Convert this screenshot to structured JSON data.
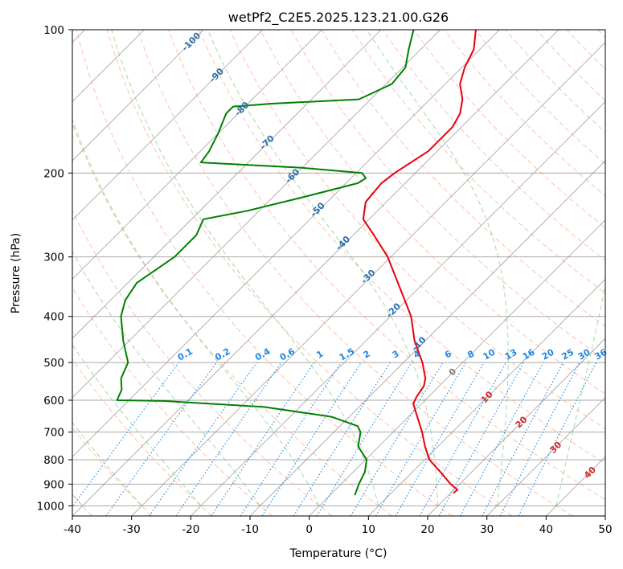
{
  "colors": {
    "temperature": "#e8000b",
    "dewpoint": "#008000",
    "dry_adiabat": "#ff8c69",
    "moist_adiabat": "#7fc97f",
    "mixing_ratio": "#1e88e5",
    "mixing_ratio_label": "#1e88e5",
    "isotherm": "#808080",
    "isobar": "#a9a9a9",
    "wet_bulb_label": "#2a6fb0",
    "theta_e_label": "#d62728",
    "zero_label": "#808080",
    "extra_curve": "#d2b48c"
  },
  "chart_data": {
    "type": "line",
    "title": "wetPf2_C2E5.2025.123.21.00.G26",
    "xlabel": "Temperature (°C)",
    "ylabel": "Pressure (hPa)",
    "xlim": [
      -40,
      50
    ],
    "ylim": [
      1050,
      100
    ],
    "y_scale": "log",
    "skew": "isotherms tilted 45° to the right",
    "grid": true,
    "xticks": [
      -40,
      -30,
      -20,
      -10,
      0,
      10,
      20,
      30,
      40,
      50
    ],
    "yticks": [
      100,
      200,
      300,
      400,
      500,
      600,
      700,
      800,
      900,
      1000
    ],
    "series": [
      {
        "role": "temperature",
        "points": [
          {
            "p": 940,
            "t": 20.5
          },
          {
            "p": 925,
            "t": 20.6
          },
          {
            "p": 900,
            "t": 18.5
          },
          {
            "p": 850,
            "t": 14.8
          },
          {
            "p": 800,
            "t": 10.8
          },
          {
            "p": 750,
            "t": 7.8
          },
          {
            "p": 700,
            "t": 4.9
          },
          {
            "p": 650,
            "t": 1.5
          },
          {
            "p": 610,
            "t": -1.4
          },
          {
            "p": 590,
            "t": -2.0
          },
          {
            "p": 560,
            "t": -2.6
          },
          {
            "p": 540,
            "t": -3.6
          },
          {
            "p": 500,
            "t": -6.8
          },
          {
            "p": 450,
            "t": -11.8
          },
          {
            "p": 400,
            "t": -16.5
          },
          {
            "p": 350,
            "t": -23.0
          },
          {
            "p": 300,
            "t": -30.5
          },
          {
            "p": 270,
            "t": -36.5
          },
          {
            "p": 250,
            "t": -41.0
          },
          {
            "p": 230,
            "t": -43.5
          },
          {
            "p": 210,
            "t": -44.0
          },
          {
            "p": 200,
            "t": -43.5
          },
          {
            "p": 180,
            "t": -41.5
          },
          {
            "p": 160,
            "t": -41.5
          },
          {
            "p": 150,
            "t": -42.5
          },
          {
            "p": 140,
            "t": -44.5
          },
          {
            "p": 130,
            "t": -47.5
          },
          {
            "p": 120,
            "t": -49.5
          },
          {
            "p": 110,
            "t": -51.0
          },
          {
            "p": 100,
            "t": -54.0
          }
        ]
      },
      {
        "role": "dewpoint",
        "points": [
          {
            "p": 950,
            "t": 4.2
          },
          {
            "p": 900,
            "t": 3.0
          },
          {
            "p": 850,
            "t": 2.0
          },
          {
            "p": 800,
            "t": 0.2
          },
          {
            "p": 750,
            "t": -3.5
          },
          {
            "p": 700,
            "t": -5.5
          },
          {
            "p": 680,
            "t": -7.0
          },
          {
            "p": 650,
            "t": -13.0
          },
          {
            "p": 620,
            "t": -26.0
          },
          {
            "p": 602,
            "t": -44.0
          },
          {
            "p": 600,
            "t": -52.0
          },
          {
            "p": 570,
            "t": -53.0
          },
          {
            "p": 540,
            "t": -55.0
          },
          {
            "p": 500,
            "t": -56.5
          },
          {
            "p": 450,
            "t": -61.0
          },
          {
            "p": 400,
            "t": -65.5
          },
          {
            "p": 370,
            "t": -67.5
          },
          {
            "p": 340,
            "t": -68.5
          },
          {
            "p": 300,
            "t": -66.5
          },
          {
            "p": 270,
            "t": -66.5
          },
          {
            "p": 250,
            "t": -68.0
          },
          {
            "p": 240,
            "t": -62.0
          },
          {
            "p": 225,
            "t": -55.0
          },
          {
            "p": 210,
            "t": -48.0
          },
          {
            "p": 205,
            "t": -47.5
          },
          {
            "p": 200,
            "t": -49.0
          },
          {
            "p": 195,
            "t": -60.0
          },
          {
            "p": 190,
            "t": -78.0
          },
          {
            "p": 180,
            "t": -78.5
          },
          {
            "p": 165,
            "t": -80.0
          },
          {
            "p": 150,
            "t": -82.0
          },
          {
            "p": 145,
            "t": -82.0
          },
          {
            "p": 143,
            "t": -76.0
          },
          {
            "p": 140,
            "t": -62.0
          },
          {
            "p": 130,
            "t": -59.0
          },
          {
            "p": 120,
            "t": -59.5
          },
          {
            "p": 110,
            "t": -62.0
          },
          {
            "p": 100,
            "t": -64.5
          }
        ]
      }
    ],
    "wet_bulb_isotherm_labels": [
      "-100",
      "-90",
      "-80",
      "-70",
      "-60",
      "-50",
      "-40",
      "-30",
      "-20",
      "-10"
    ],
    "mixing_ratio_labels": [
      "0.1",
      "0.2",
      "0.4",
      "0.6",
      "1",
      "1.5",
      "2",
      "3",
      "4",
      "6",
      "8",
      "10",
      "13",
      "16",
      "20",
      "25",
      "30",
      "36"
    ],
    "theta_e_labels": [
      "0",
      "10",
      "20",
      "30",
      "40"
    ]
  }
}
